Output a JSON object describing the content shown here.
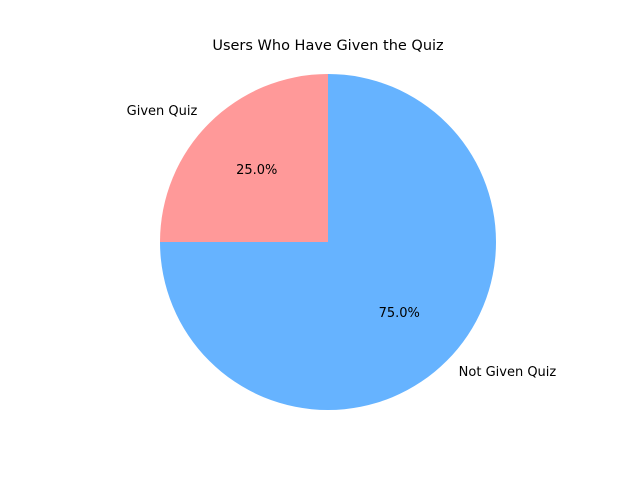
{
  "chart_data": {
    "type": "pie",
    "title": "Users Who Have Given the Quiz",
    "slices": [
      {
        "label": "Given Quiz",
        "value": 25,
        "pct_label": "25.0%",
        "color": "#ff9999"
      },
      {
        "label": "Not Given Quiz",
        "value": 75,
        "pct_label": "75.0%",
        "color": "#66b3ff"
      }
    ],
    "start_angle_deg": 90,
    "direction": "counterclockwise"
  }
}
